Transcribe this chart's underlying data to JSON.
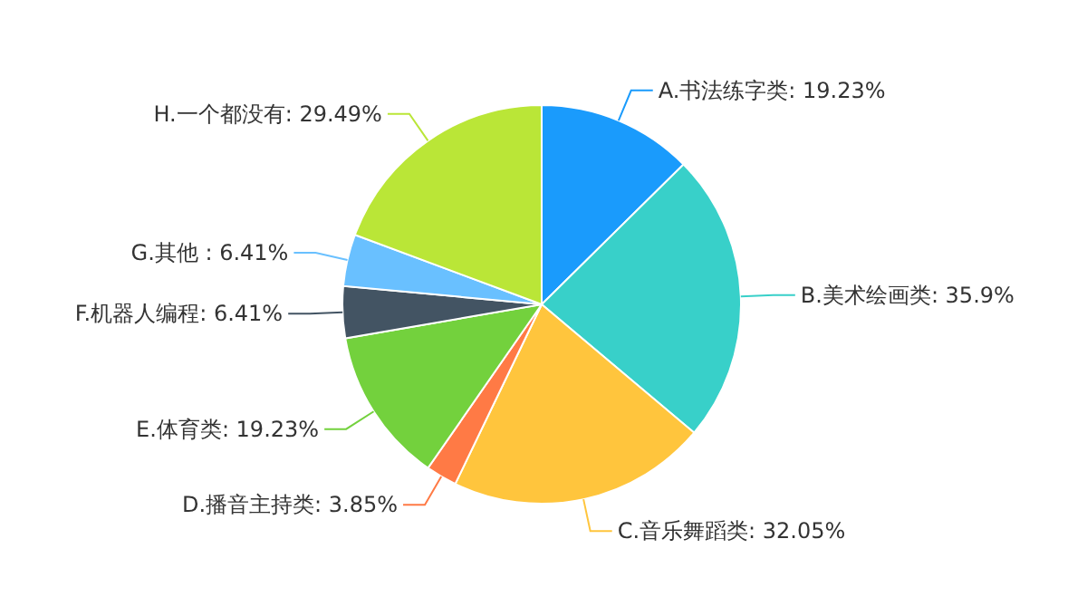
{
  "chart_data": {
    "type": "pie",
    "categories": [
      "A.书法练字类",
      "B.美术绘画类",
      "C.音乐舞蹈类",
      "D.播音主持类",
      "E.体育类",
      "F.机器人编程",
      "G.其他 ",
      "H.一个都没有"
    ],
    "values": [
      19.23,
      35.9,
      32.05,
      3.85,
      19.23,
      6.41,
      6.41,
      29.49
    ],
    "value_labels": [
      "19.23%",
      "35.9%",
      "32.05%",
      "3.85%",
      "19.23%",
      "6.41%",
      "6.41%",
      "29.49%"
    ],
    "colors": [
      "#1a9bfc",
      "#38d0c9",
      "#ffc53d",
      "#ff7a45",
      "#73d13d",
      "#435463",
      "#69c0ff",
      "#bae637"
    ]
  }
}
